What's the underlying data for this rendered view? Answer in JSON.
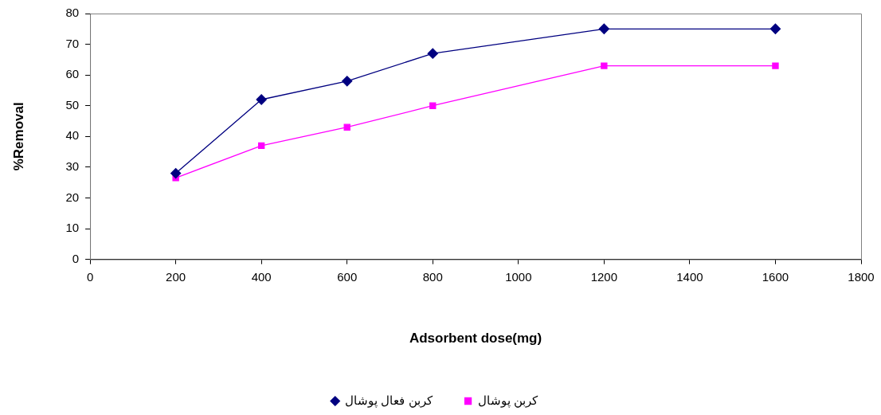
{
  "chart_data": {
    "type": "line",
    "xlabel": "Adsorbent dose(mg)",
    "ylabel": "%Removal",
    "x": [
      200,
      400,
      600,
      800,
      1200,
      1600
    ],
    "series": [
      {
        "name": "کربن فعال پوشال",
        "color": "#000080",
        "marker": "diamond",
        "values": [
          28,
          52,
          58,
          67,
          75,
          75
        ]
      },
      {
        "name": "کربن پوشال",
        "color": "#ff00ff",
        "marker": "square",
        "values": [
          26.5,
          37,
          43,
          50,
          63,
          63
        ]
      }
    ],
    "xlim": [
      0,
      1800
    ],
    "xticks": [
      0,
      200,
      400,
      600,
      800,
      1000,
      1200,
      1400,
      1600,
      1800
    ],
    "ylim": [
      0,
      80
    ],
    "yticks": [
      0,
      10,
      20,
      30,
      40,
      50,
      60,
      70,
      80
    ],
    "grid": false,
    "legend": "bottom",
    "line_style": "solid"
  }
}
